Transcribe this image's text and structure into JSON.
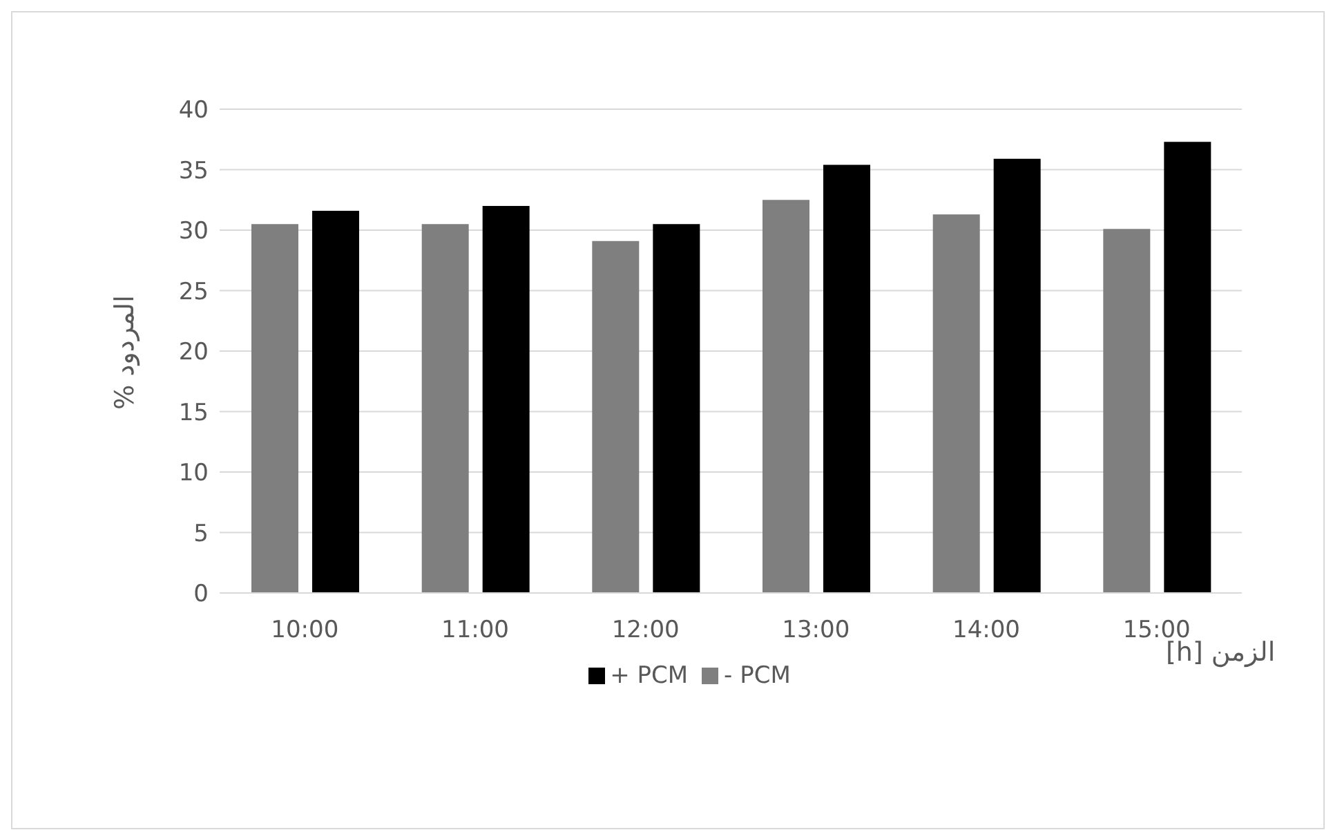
{
  "chart_data": {
    "type": "bar",
    "xlabel": "الزمن [h]",
    "ylabel": "المردود %",
    "categories": [
      "10:00",
      "11:00",
      "12:00",
      "13:00",
      "14:00",
      "15:00"
    ],
    "series": [
      {
        "name": "- PCM",
        "color": "#7f7f7f",
        "values": [
          30.5,
          30.5,
          29.1,
          32.5,
          31.3,
          30.1
        ]
      },
      {
        "name": "+ PCM",
        "color": "#000000",
        "values": [
          31.6,
          32.0,
          30.5,
          35.4,
          35.9,
          37.3
        ]
      }
    ],
    "ylim": [
      0,
      40
    ],
    "yticks": [
      0,
      5,
      10,
      15,
      20,
      25,
      30,
      35,
      40
    ],
    "grid": "y",
    "legend": "bottom"
  }
}
